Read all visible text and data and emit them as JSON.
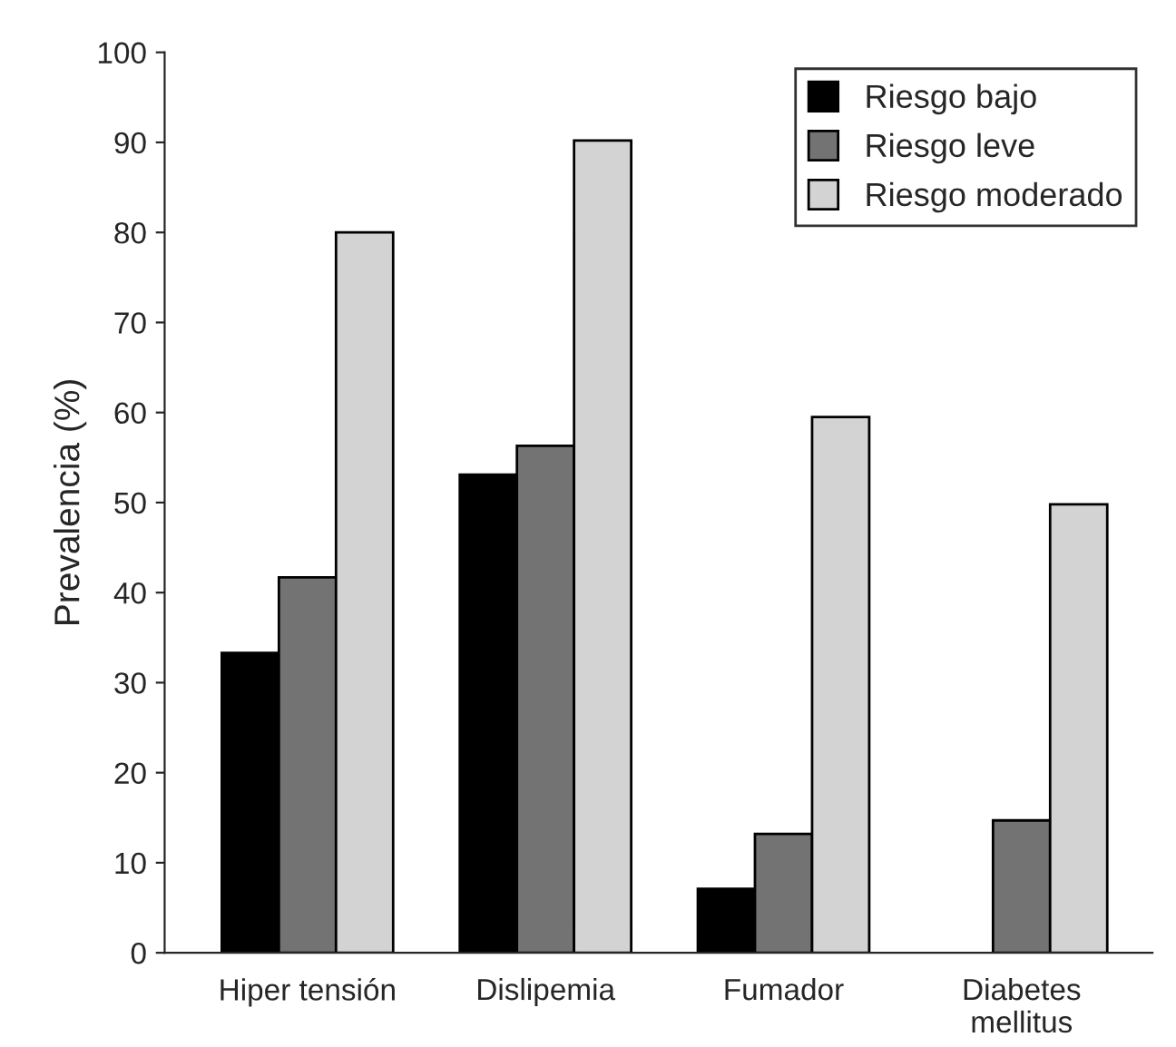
{
  "chart_data": {
    "type": "bar",
    "ylabel": "Prevalencia (%)",
    "categories": [
      "Hiper tensión",
      "Dislipemia",
      "Fumador",
      "Diabetes\nmellitus"
    ],
    "series": [
      {
        "name": "Riesgo bajo",
        "color": "#000000",
        "values": [
          33.3,
          53.1,
          7.1,
          null
        ]
      },
      {
        "name": "Riesgo leve",
        "color": "#737373",
        "values": [
          41.7,
          56.3,
          13.2,
          14.7
        ]
      },
      {
        "name": "Riesgo moderado",
        "color": "#d3d3d3",
        "values": [
          80,
          90.2,
          59.5,
          49.8
        ]
      }
    ],
    "ylim": [
      0,
      100
    ],
    "yticks": [
      0,
      10,
      20,
      30,
      40,
      50,
      60,
      70,
      80,
      90,
      100
    ],
    "grid": false,
    "legend": "top right"
  }
}
